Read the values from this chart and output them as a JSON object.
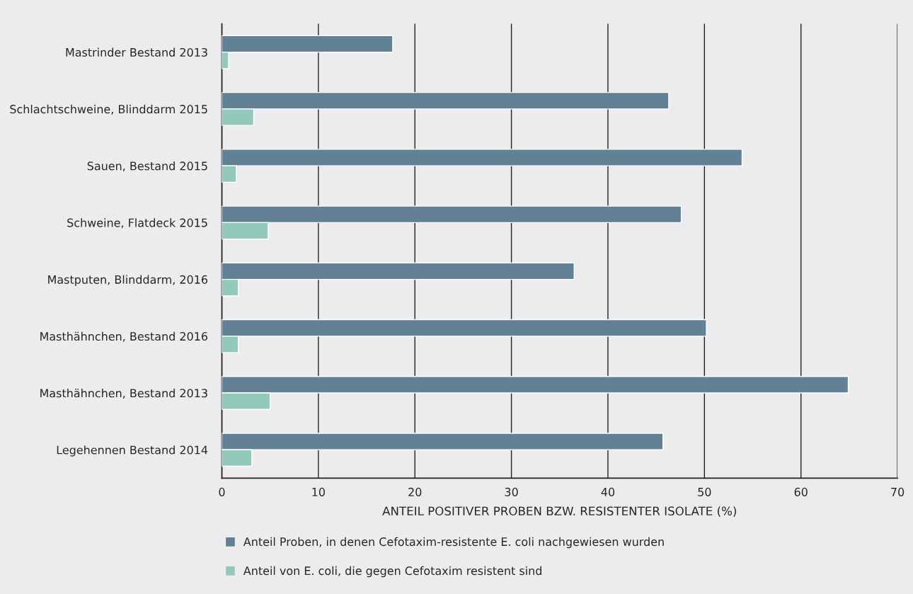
{
  "chart_data": {
    "type": "bar",
    "orientation": "horizontal",
    "categories": [
      "Mastrinder Bestand 2013",
      "Schlachtschweine, Blinddarm 2015",
      "Sauen, Bestand 2015",
      "Schweine, Flatdeck 2015",
      "Mastputen, Blinddarm, 2016",
      "Masthähnchen, Bestand 2016",
      "Masthähnchen, Bestand 2013",
      "Legehennen Bestand 2014"
    ],
    "series": [
      {
        "name": "Anteil Proben, in denen Cefotaxim-resistente E. coli nachgewiesen wurden",
        "color": "#628195",
        "values": [
          17.7,
          46.3,
          53.9,
          47.6,
          36.5,
          50.2,
          64.9,
          45.7
        ]
      },
      {
        "name": "Anteil von E. coli, die gegen Cefotaxim resistent sind",
        "color": "#92c9bb",
        "values": [
          0.7,
          3.3,
          1.5,
          4.8,
          1.7,
          1.7,
          5.0,
          3.1
        ]
      }
    ],
    "xlabel": "ANTEIL POSITIVER PROBEN BZW. RESISTENTER ISOLATE (%)",
    "xlim": [
      0,
      70
    ],
    "xticks": [
      0,
      10,
      20,
      30,
      40,
      50,
      60,
      70
    ],
    "grid": "x",
    "legend": "bottom"
  }
}
